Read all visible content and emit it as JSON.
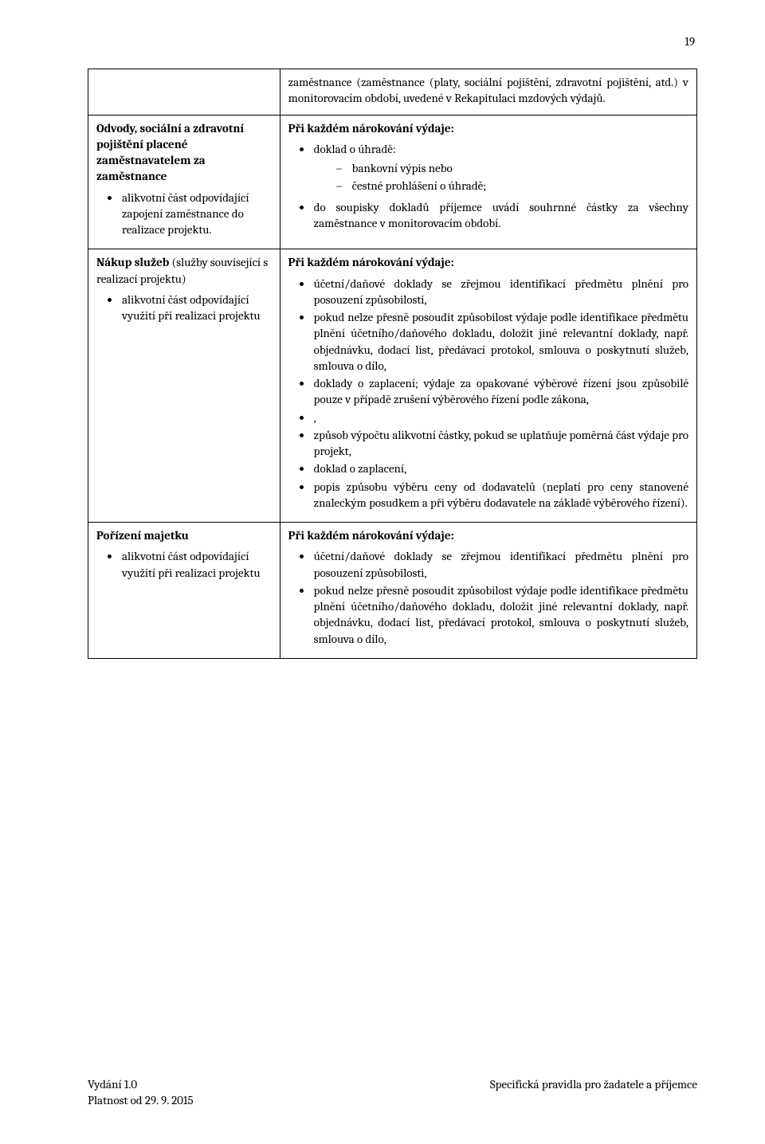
{
  "pagenum": "19",
  "row0": {
    "right_text": "zaměstnance (zaměstnance (platy, sociální pojištění, zdravotní pojištění, atd.) v monitorovacím období, uvedené v Rekapitulaci mzdových výdajů."
  },
  "row1": {
    "left_title": "Odvody, sociální a zdravotní pojištění placené zaměstnavatelem za zaměstnance",
    "left_bullet": "alikvotní část odpovídající zapojení zaměstnance do realizace projektu.",
    "right_heading": "Při každém nárokování výdaje:",
    "right_b1": "doklad o úhradě:",
    "right_dash1": "bankovní výpis nebo",
    "right_dash2": "čestné prohlášení o úhradě;",
    "right_b2": "do soupisky dokladů příjemce uvádí souhrnné částky za všechny zaměstnance v monitorovacím období."
  },
  "row2": {
    "left_title": "Nákup služeb",
    "left_title_rest": " (služby související s realizací projektu)",
    "left_bullet": "alikvotní část odpovídající využití při realizaci projektu",
    "right_heading": "Při každém nárokování výdaje:",
    "b1": "účetní/daňové doklady se zřejmou identifikací předmětu plnění pro posouzení způsobilosti,",
    "b2": "pokud nelze přesně posoudit způsobilost výdaje podle identifikace předmětu plnění účetního/daňového dokladu, doložit jiné relevantní doklady, např. objednávku, dodací list, předávací protokol, smlouva o poskytnutí služeb, smlouva o dílo,",
    "b3": "doklady o zaplacení; výdaje za opakované výběrové řízení jsou způsobilé pouze v případě zrušení výběrového řízení podle zákona,",
    "b4": ",",
    "b5": "způsob výpočtu alikvotní částky, pokud se uplatňuje poměrná část výdaje pro projekt,",
    "b6": "doklad o zaplacení,",
    "b7": "popis způsobu výběru ceny od dodavatelů (neplatí pro ceny stanovené znaleckým posudkem a při výběru dodavatele na základě výběrového řízení)."
  },
  "row3": {
    "left_title": "Pořízení majetku",
    "left_bullet": "alikvotní část odpovídající využití při realizaci projektu",
    "right_heading": "Při každém nárokování výdaje:",
    "b1": "účetní/daňové doklady se zřejmou identifikací předmětu plnění pro posouzení způsobilosti,",
    "b2": "pokud nelze přesně posoudit způsobilost výdaje podle identifikace předmětu plnění účetního/daňového dokladu, doložit jiné relevantní doklady, např. objednávku, dodací list, předávací protokol, smlouva o poskytnutí služeb, smlouva o dílo,"
  },
  "footer": {
    "line1": "Vydání 1.0",
    "line2": "Platnost od 29. 9. 2015",
    "right": "Specifická pravidla pro žadatele a příjemce"
  }
}
